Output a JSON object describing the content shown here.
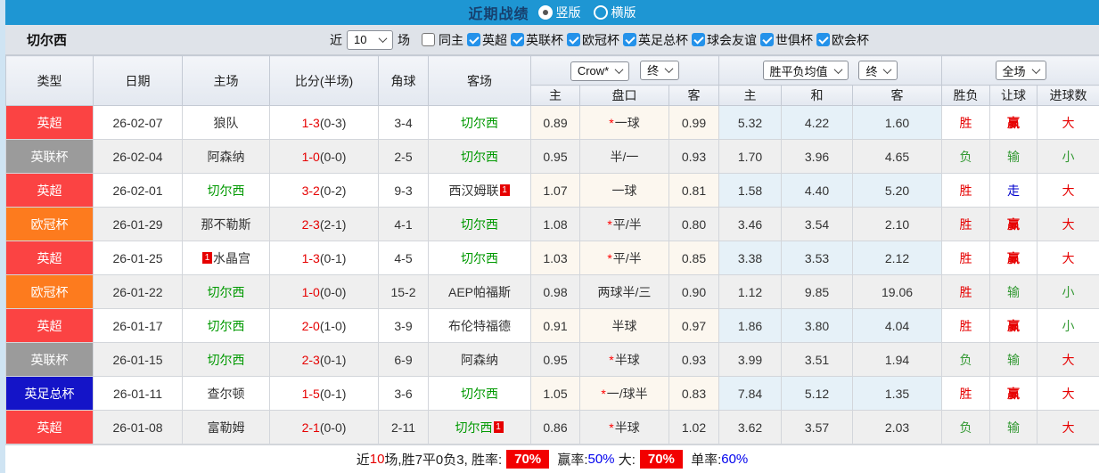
{
  "title_bar": {
    "title": "近期战绩",
    "layout_options": [
      {
        "label": "竖版",
        "selected": true
      },
      {
        "label": "横版",
        "selected": false
      }
    ]
  },
  "filter_bar": {
    "team": "切尔西",
    "recent_prefix": "近",
    "recent_count": "10",
    "recent_suffix": "场",
    "same_home_label": "同主",
    "same_home_checked": false,
    "competitions": [
      {
        "label": "英超",
        "checked": true
      },
      {
        "label": "英联杯",
        "checked": true
      },
      {
        "label": "欧冠杯",
        "checked": true
      },
      {
        "label": "英足总杯",
        "checked": true
      },
      {
        "label": "球会友谊",
        "checked": true
      },
      {
        "label": "世俱杯",
        "checked": true
      },
      {
        "label": "欧会杯",
        "checked": true
      }
    ]
  },
  "table": {
    "selects": {
      "company": "Crow*",
      "company_time": "终",
      "wdl": "胜平负均值",
      "wdl_time": "终",
      "scope": "全场"
    },
    "columns": [
      "类型",
      "日期",
      "主场",
      "比分(半场)",
      "角球",
      "客场",
      "主",
      "盘口",
      "客",
      "主",
      "和",
      "客",
      "胜负",
      "让球",
      "进球数"
    ],
    "rows": [
      {
        "league": "英超",
        "date": "26-02-07",
        "home": {
          "name": "狼队"
        },
        "score": {
          "ft": "1-3",
          "ht": "(0-3)"
        },
        "corners": "3-4",
        "away": {
          "name": "切尔西",
          "highlight": true
        },
        "asian": {
          "home": "0.89",
          "line": "一球",
          "star": true,
          "away": "0.99"
        },
        "euro": {
          "home": "5.32",
          "draw": "4.22",
          "away": "1.60"
        },
        "res": [
          {
            "t": "胜",
            "c": "red"
          },
          {
            "t": "赢",
            "c": "red",
            "b": true
          },
          {
            "t": "大",
            "c": "red"
          }
        ]
      },
      {
        "league": "英联杯",
        "date": "26-02-04",
        "home": {
          "name": "阿森纳"
        },
        "score": {
          "ft": "1-0",
          "ht": "(0-0)"
        },
        "corners": "2-5",
        "away": {
          "name": "切尔西",
          "highlight": true
        },
        "asian": {
          "home": "0.95",
          "line": "半/一",
          "star": false,
          "away": "0.93"
        },
        "euro": {
          "home": "1.70",
          "draw": "3.96",
          "away": "4.65"
        },
        "res": [
          {
            "t": "负",
            "c": "green"
          },
          {
            "t": "输",
            "c": "green"
          },
          {
            "t": "小",
            "c": "green"
          }
        ]
      },
      {
        "league": "英超",
        "date": "26-02-01",
        "home": {
          "name": "切尔西",
          "highlight": true
        },
        "score": {
          "ft": "3-2",
          "ht": "(0-2)"
        },
        "corners": "9-3",
        "away": {
          "name": "西汉姆联",
          "badge": "1",
          "badge_side": "right"
        },
        "asian": {
          "home": "1.07",
          "line": "一球",
          "star": false,
          "away": "0.81"
        },
        "euro": {
          "home": "1.58",
          "draw": "4.40",
          "away": "5.20"
        },
        "res": [
          {
            "t": "胜",
            "c": "red"
          },
          {
            "t": "走",
            "c": "blue"
          },
          {
            "t": "大",
            "c": "red"
          }
        ]
      },
      {
        "league": "欧冠杯",
        "date": "26-01-29",
        "home": {
          "name": "那不勒斯"
        },
        "score": {
          "ft": "2-3",
          "ht": "(2-1)"
        },
        "corners": "4-1",
        "away": {
          "name": "切尔西",
          "highlight": true
        },
        "asian": {
          "home": "1.08",
          "line": "平/半",
          "star": true,
          "away": "0.80"
        },
        "euro": {
          "home": "3.46",
          "draw": "3.54",
          "away": "2.10"
        },
        "res": [
          {
            "t": "胜",
            "c": "red"
          },
          {
            "t": "赢",
            "c": "red",
            "b": true
          },
          {
            "t": "大",
            "c": "red"
          }
        ]
      },
      {
        "league": "英超",
        "date": "26-01-25",
        "home": {
          "name": "水晶宫",
          "badge": "1",
          "badge_side": "left"
        },
        "score": {
          "ft": "1-3",
          "ht": "(0-1)"
        },
        "corners": "4-5",
        "away": {
          "name": "切尔西",
          "highlight": true
        },
        "asian": {
          "home": "1.03",
          "line": "平/半",
          "star": true,
          "away": "0.85"
        },
        "euro": {
          "home": "3.38",
          "draw": "3.53",
          "away": "2.12"
        },
        "res": [
          {
            "t": "胜",
            "c": "red"
          },
          {
            "t": "赢",
            "c": "red",
            "b": true
          },
          {
            "t": "大",
            "c": "red"
          }
        ]
      },
      {
        "league": "欧冠杯",
        "date": "26-01-22",
        "home": {
          "name": "切尔西",
          "highlight": true
        },
        "score": {
          "ft": "1-0",
          "ht": "(0-0)"
        },
        "corners": "15-2",
        "away": {
          "name": "AEP帕福斯"
        },
        "asian": {
          "home": "0.98",
          "line": "两球半/三",
          "star": false,
          "away": "0.90"
        },
        "euro": {
          "home": "1.12",
          "draw": "9.85",
          "away": "19.06"
        },
        "res": [
          {
            "t": "胜",
            "c": "red"
          },
          {
            "t": "输",
            "c": "green"
          },
          {
            "t": "小",
            "c": "green"
          }
        ]
      },
      {
        "league": "英超",
        "date": "26-01-17",
        "home": {
          "name": "切尔西",
          "highlight": true
        },
        "score": {
          "ft": "2-0",
          "ht": "(1-0)"
        },
        "corners": "3-9",
        "away": {
          "name": "布伦特福德"
        },
        "asian": {
          "home": "0.91",
          "line": "半球",
          "star": false,
          "away": "0.97"
        },
        "euro": {
          "home": "1.86",
          "draw": "3.80",
          "away": "4.04"
        },
        "res": [
          {
            "t": "胜",
            "c": "red"
          },
          {
            "t": "赢",
            "c": "red",
            "b": true
          },
          {
            "t": "小",
            "c": "green"
          }
        ]
      },
      {
        "league": "英联杯",
        "date": "26-01-15",
        "home": {
          "name": "切尔西",
          "highlight": true
        },
        "score": {
          "ft": "2-3",
          "ht": "(0-1)"
        },
        "corners": "6-9",
        "away": {
          "name": "阿森纳"
        },
        "asian": {
          "home": "0.95",
          "line": "半球",
          "star": true,
          "away": "0.93"
        },
        "euro": {
          "home": "3.99",
          "draw": "3.51",
          "away": "1.94"
        },
        "res": [
          {
            "t": "负",
            "c": "green"
          },
          {
            "t": "输",
            "c": "green"
          },
          {
            "t": "大",
            "c": "red"
          }
        ]
      },
      {
        "league": "英足总杯",
        "date": "26-01-11",
        "home": {
          "name": "查尔顿"
        },
        "score": {
          "ft": "1-5",
          "ht": "(0-1)"
        },
        "corners": "3-6",
        "away": {
          "name": "切尔西",
          "highlight": true
        },
        "asian": {
          "home": "1.05",
          "line": "一/球半",
          "star": true,
          "away": "0.83"
        },
        "euro": {
          "home": "7.84",
          "draw": "5.12",
          "away": "1.35"
        },
        "res": [
          {
            "t": "胜",
            "c": "red"
          },
          {
            "t": "赢",
            "c": "red",
            "b": true
          },
          {
            "t": "大",
            "c": "red"
          }
        ]
      },
      {
        "league": "英超",
        "date": "26-01-08",
        "home": {
          "name": "富勒姆"
        },
        "score": {
          "ft": "2-1",
          "ht": "(0-0)"
        },
        "corners": "2-11",
        "away": {
          "name": "切尔西",
          "highlight": true,
          "badge": "1",
          "badge_side": "right"
        },
        "asian": {
          "home": "0.86",
          "line": "半球",
          "star": true,
          "away": "1.02"
        },
        "euro": {
          "home": "3.62",
          "draw": "3.57",
          "away": "2.03"
        },
        "res": [
          {
            "t": "负",
            "c": "green"
          },
          {
            "t": "输",
            "c": "green"
          },
          {
            "t": "大",
            "c": "red"
          }
        ]
      }
    ]
  },
  "footer": {
    "segments": [
      {
        "text": "近",
        "style": "plain"
      },
      {
        "text": "10",
        "style": "red-text"
      },
      {
        "text": "场,胜7平0负3, 胜率:",
        "style": "plain"
      },
      {
        "text": "70%",
        "style": "red-badge"
      },
      {
        "text": " 赢率:",
        "style": "plain"
      },
      {
        "text": "50%",
        "style": "blue-text"
      },
      {
        "text": " 大:",
        "style": "plain"
      },
      {
        "text": "70%",
        "style": "red-badge"
      },
      {
        "text": " 单率:",
        "style": "plain"
      },
      {
        "text": "60%",
        "style": "blue-text"
      }
    ]
  },
  "colors": {
    "topbar_bg": "#1e96d3",
    "title_text": "#17406e",
    "checkbox_blue": "#2492ea",
    "league": {
      "英超": "#fb4343",
      "英联杯": "#9b9b9b",
      "欧冠杯": "#fd7b1e",
      "英足总杯": "#1414c8"
    },
    "score_red": "#e60000",
    "team_green": "#009900",
    "result_red": "#e60000",
    "result_green": "#339933",
    "result_blue": "#0000cc",
    "footer_badge_red": "#f20000",
    "footer_link_blue": "#0000ee",
    "asian_cell_bg": "#fcf7ef",
    "euro_cell_bg": "#e6f1f8"
  }
}
